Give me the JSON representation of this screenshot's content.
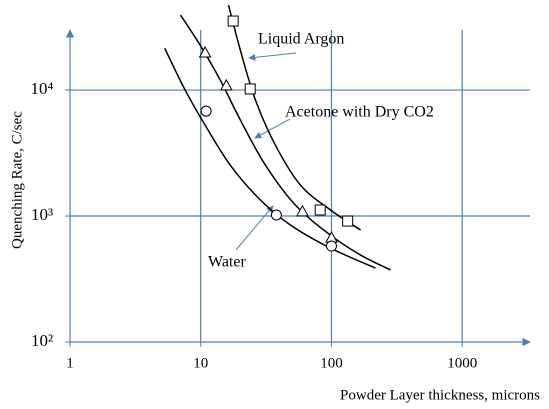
{
  "chart_data": {
    "type": "line",
    "xlabel": "Powder Layer thickness, microns",
    "ylabel": "Quenching Rate, C/sec",
    "xscale": "log",
    "yscale": "log",
    "xlim": [
      1,
      3300
    ],
    "ylim": [
      100,
      50000
    ],
    "xticks": [
      1,
      10,
      100,
      1000
    ],
    "yticks": [
      {
        "value": 100,
        "label": "10²"
      },
      {
        "value": 1000,
        "label": "10³"
      },
      {
        "value": 10000,
        "label": "10⁴"
      }
    ],
    "grid": true,
    "grid_color": "#4a7ebb",
    "series": [
      {
        "name": "Liquid Argon",
        "color": "#000000",
        "marker": "square",
        "x": [
          16.3,
          20.1,
          26.2,
          37.2,
          57.9,
          98.3,
          167
        ],
        "values": [
          47300,
          20700,
          8340,
          3660,
          1760,
          1117,
          774
        ],
        "marker_x": [
          17.7,
          23.9,
          82,
          133
        ],
        "marker_values": [
          35300,
          10200,
          1117,
          912
        ]
      },
      {
        "name": "Acetone with Dry CO2",
        "color": "#000000",
        "marker": "triangle",
        "x": [
          7,
          9.9,
          14.1,
          20.1,
          31.2,
          53,
          98,
          167,
          283
        ],
        "values": [
          39400,
          22700,
          12000,
          5780,
          2540,
          1220,
          706,
          490,
          373
        ],
        "marker_x": [
          10.8,
          15.7,
          60,
          100
        ],
        "marker_values": [
          19700,
          10800,
          1080,
          668
        ]
      },
      {
        "name": "Water",
        "color": "#000000",
        "marker": "circle",
        "x": [
          5.3,
          7.6,
          10.8,
          16.8,
          28.6,
          48.5,
          98,
          217
        ],
        "values": [
          21500,
          10000,
          5270,
          2540,
          1340,
          849,
          557,
          386
        ],
        "marker_x": [
          11,
          37.9,
          100
        ],
        "marker_values": [
          6810,
          1020,
          578
        ]
      }
    ]
  }
}
